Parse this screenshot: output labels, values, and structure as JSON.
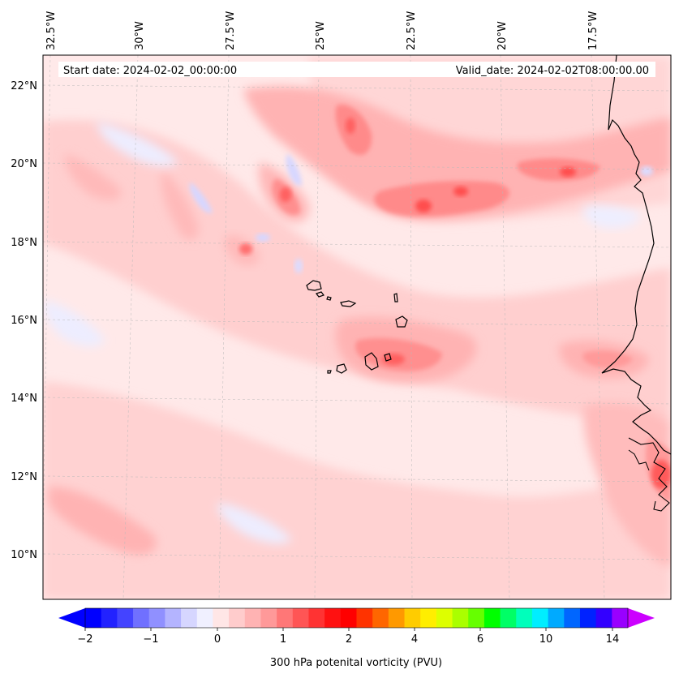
{
  "header": {
    "start_date": "Start date: 2024-02-02_00:00:00",
    "valid_date": "Valid_date: 2024-02-02T08:00:00.00"
  },
  "lon_labels": [
    "32.5°W",
    "30°W",
    "27.5°W",
    "25°W",
    "22.5°W",
    "20°W",
    "17.5°W"
  ],
  "lat_labels": [
    "22°N",
    "20°N",
    "18°N",
    "16°N",
    "14°N",
    "12°N",
    "10°N"
  ],
  "colorbar": {
    "label": "300 hPa potenital vorticity (PVU)",
    "tick_labels": [
      "−2",
      "−1",
      "0",
      "1",
      "2",
      "4",
      "6",
      "10",
      "14"
    ],
    "colors": [
      "#0000ff",
      "#2222ff",
      "#4444ff",
      "#7070ff",
      "#9090ff",
      "#b4b4ff",
      "#d6d6ff",
      "#f0f0ff",
      "#ffe6e6",
      "#ffcccc",
      "#ffb3b3",
      "#ff9999",
      "#ff7777",
      "#ff5555",
      "#ff3333",
      "#ff1111",
      "#ff0000",
      "#ff3300",
      "#ff6600",
      "#ff9900",
      "#ffcc00",
      "#ffee00",
      "#ddff00",
      "#aaff00",
      "#66ff00",
      "#00ff00",
      "#00ff66",
      "#00ffbb",
      "#00eeff",
      "#00aaff",
      "#0066ff",
      "#0022ff",
      "#3300ff",
      "#9900ff"
    ],
    "min_color": "#0000ff",
    "max_color": "#cc00ff"
  },
  "map": {
    "background": "#ffe9e9",
    "land_outline_color": "#000000"
  }
}
